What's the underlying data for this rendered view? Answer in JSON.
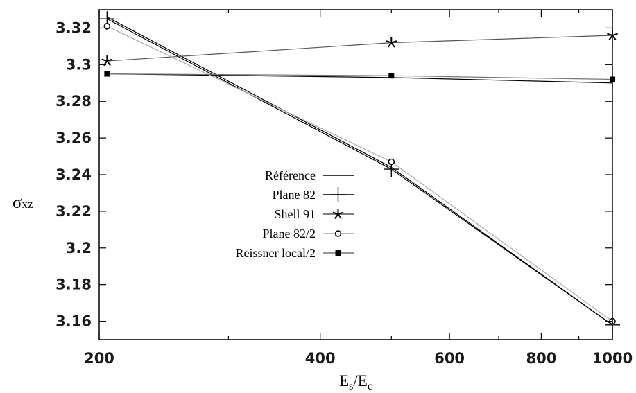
{
  "chart_data": {
    "type": "line",
    "xlabel": "Es/Ec",
    "ylabel": "σxz",
    "xscale": "log",
    "xlim": [
      200,
      1000
    ],
    "ylim": [
      3.15,
      3.33
    ],
    "x_ticks": [
      200,
      400,
      600,
      800,
      1000
    ],
    "y_ticks": [
      3.16,
      3.18,
      3.2,
      3.22,
      3.24,
      3.26,
      3.28,
      3.3,
      3.32
    ],
    "grid": false,
    "legend_position": "center-left",
    "series": [
      {
        "name": "Référence",
        "color": "#000000",
        "marker": "none",
        "x": [
          205,
          500,
          1000
        ],
        "y": [
          3.326,
          3.244,
          3.158
        ]
      },
      {
        "name": "Plane 82",
        "color": "#000000",
        "marker": "plus",
        "x": [
          205,
          500,
          1000
        ],
        "y": [
          3.325,
          3.243,
          3.158
        ]
      },
      {
        "name": "Shell 91",
        "color": "#555555",
        "marker": "star",
        "x": [
          205,
          500,
          1000
        ],
        "y": [
          3.302,
          3.312,
          3.316
        ]
      },
      {
        "name": "Plane 82/2",
        "color": "#aaaaaa",
        "marker": "open-circle",
        "x": [
          205,
          500,
          1000
        ],
        "y": [
          3.321,
          3.247,
          3.16
        ]
      },
      {
        "name": "Reissner local/2",
        "color": "#777777",
        "marker": "filled-square",
        "x": [
          205,
          500,
          1000
        ],
        "y": [
          3.295,
          3.294,
          3.292
        ]
      }
    ],
    "extra_lines": [
      {
        "name": "Référence",
        "color": "#000000",
        "x": [
          205,
          500,
          1000
        ],
        "y": [
          3.295,
          3.293,
          3.29
        ]
      }
    ]
  }
}
